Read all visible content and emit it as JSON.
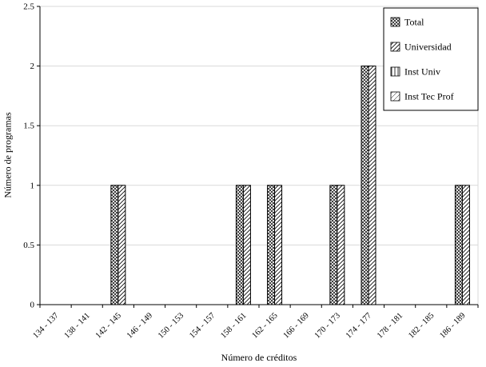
{
  "chart_data": {
    "type": "bar",
    "title": "",
    "xlabel": "Número de créditos",
    "ylabel": "Número de programas",
    "ylim": [
      0,
      2.5
    ],
    "ytick_step": 0.5,
    "yticks": [
      "0",
      "0.5",
      "1",
      "1.5",
      "2",
      "2.5"
    ],
    "grid": true,
    "legend_position": "top-right",
    "categories": [
      "134 - 137",
      "138 - 141",
      "142 - 145",
      "146 - 149",
      "150 - 153",
      "154 - 157",
      "158 - 161",
      "162 - 165",
      "166 - 169",
      "170 - 173",
      "174 - 177",
      "178 - 181",
      "182 - 185",
      "186 - 189"
    ],
    "series": [
      {
        "name": "Total",
        "pattern": "hatch-total",
        "values": [
          0,
          0,
          1,
          0,
          0,
          0,
          1,
          1,
          0,
          1,
          2,
          0,
          0,
          1
        ]
      },
      {
        "name": "Universidad",
        "pattern": "hatch-universidad",
        "values": [
          0,
          0,
          1,
          0,
          0,
          0,
          1,
          1,
          0,
          1,
          2,
          0,
          0,
          1
        ]
      },
      {
        "name": "Inst Univ",
        "pattern": "hatch-instuniv",
        "values": [
          0,
          0,
          0,
          0,
          0,
          0,
          0,
          0,
          0,
          0,
          0,
          0,
          0,
          0
        ]
      },
      {
        "name": "Inst Tec Prof",
        "pattern": "hatch-insttec",
        "values": [
          0,
          0,
          0,
          0,
          0,
          0,
          0,
          0,
          0,
          0,
          0,
          0,
          0,
          0
        ]
      }
    ],
    "colors": {
      "axis": "#000000",
      "grid": "#d9d9d9",
      "border": "#bfbfbf",
      "bar_stroke": "#000000",
      "legend_border": "#000000",
      "background": "#ffffff"
    }
  }
}
